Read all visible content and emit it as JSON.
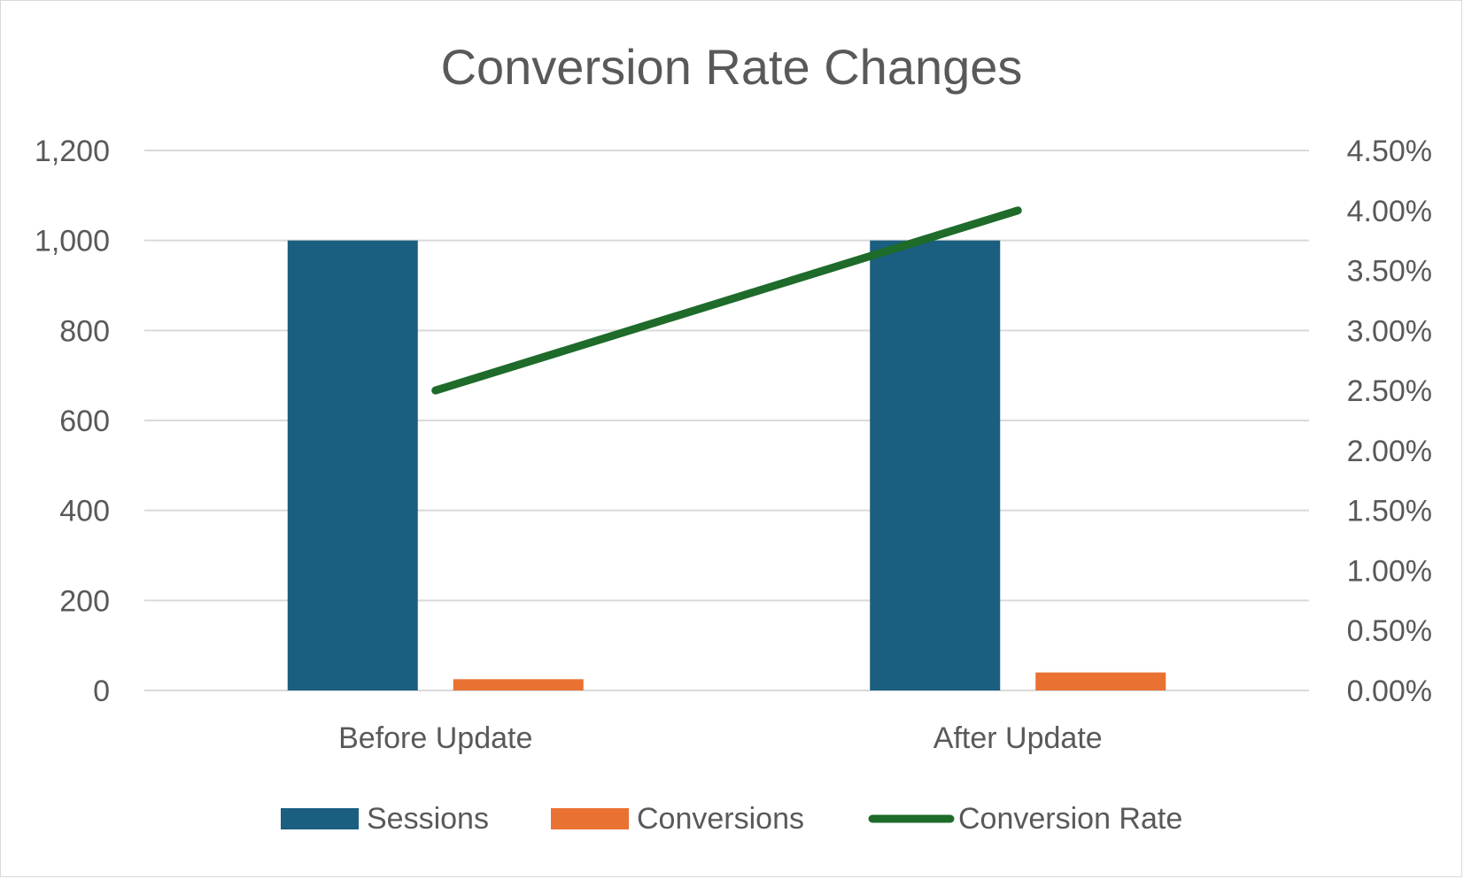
{
  "chart_data": {
    "type": "bar",
    "title": "Conversion Rate Changes",
    "categories": [
      "Before Update",
      "After Update"
    ],
    "series": [
      {
        "name": "Sessions",
        "type": "bar",
        "axis": "left",
        "color": "#1a5e80",
        "values": [
          1000,
          1000
        ]
      },
      {
        "name": "Conversions",
        "type": "bar",
        "axis": "left",
        "color": "#e97132",
        "values": [
          25,
          40
        ]
      },
      {
        "name": "Conversion Rate",
        "type": "line",
        "axis": "right",
        "color": "#1e6b2a",
        "values": [
          0.025,
          0.04
        ]
      }
    ],
    "y_left": {
      "ylim": [
        0,
        1200
      ],
      "ticks": [
        "0",
        "200",
        "400",
        "600",
        "800",
        "1,000",
        "1,200"
      ]
    },
    "y_right": {
      "ylim": [
        0,
        0.045
      ],
      "ticks": [
        "0.00%",
        "0.50%",
        "1.00%",
        "1.50%",
        "2.00%",
        "2.50%",
        "3.00%",
        "3.50%",
        "4.00%",
        "4.50%"
      ]
    },
    "grid": true,
    "legend_position": "bottom",
    "colors": {
      "gridline": "#d9d9d9",
      "text": "#595959"
    }
  }
}
